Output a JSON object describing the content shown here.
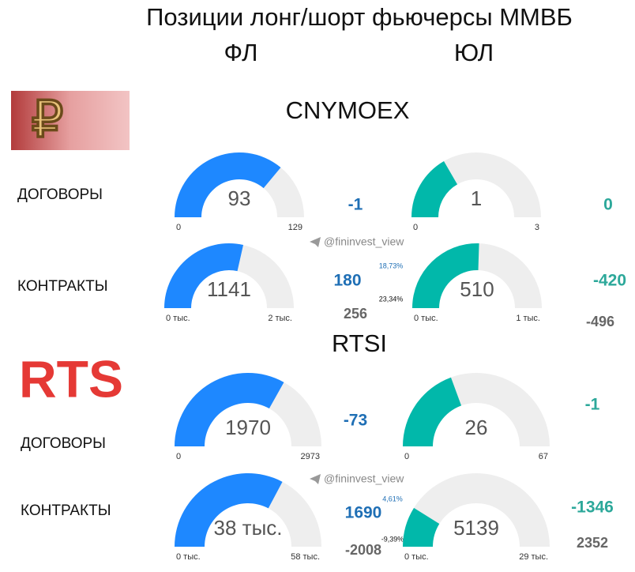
{
  "header": {
    "title": "Позиции лонг/шорт фьючерсы ММВБ",
    "col_fl": "ФЛ",
    "col_ul": "ЮЛ"
  },
  "watermark": "@fininvest_view",
  "sections": [
    {
      "name": "CNYMOEX",
      "logo": "₽",
      "rows": [
        {
          "label": "ДОГОВОРЫ",
          "gauges": [
            {
              "value": 93,
              "min": 0,
              "max": 129,
              "change": "-1"
            },
            {
              "value": 1,
              "min": 0,
              "max": 3,
              "change": "0"
            }
          ]
        },
        {
          "label": "КОНТРАКТЫ",
          "gauges": [
            {
              "value": 1141,
              "min": {
                "value": 0,
                "label": "0 тыс."
              },
              "max": {
                "value": 2000,
                "label": "2 тыс."
              },
              "change": "180",
              "sub": "256",
              "pct_up": "18,73%",
              "pct_down": "23,34%"
            },
            {
              "value": 510,
              "min": {
                "value": 0,
                "label": "0 тыс."
              },
              "max": {
                "value": 1000,
                "label": "1 тыс."
              },
              "change": "-420",
              "sub": "-496"
            }
          ]
        }
      ]
    },
    {
      "name": "RTSI",
      "logo": "RTS",
      "rows": [
        {
          "label": "ДОГОВОРЫ",
          "gauges": [
            {
              "value": 1970,
              "min": 0,
              "max": 2973,
              "change": "-73"
            },
            {
              "value": 26,
              "min": 0,
              "max": 67,
              "change": "-1"
            }
          ]
        },
        {
          "label": "КОНТРАКТЫ",
          "gauges": [
            {
              "value": 38000,
              "value_label": "38 тыс.",
              "min": {
                "value": 0,
                "label": "0 тыс."
              },
              "max": {
                "value": 58000,
                "label": "58 тыс."
              },
              "change": "1690",
              "sub": "-2008",
              "pct_up": "4,61%",
              "pct_down": "-9,39%"
            },
            {
              "value": 5139,
              "min": {
                "value": 0,
                "label": "0 тыс."
              },
              "max": {
                "value": 29000,
                "label": "29 тыс."
              },
              "change": "-1346",
              "sub": "2352"
            }
          ]
        }
      ]
    }
  ]
}
